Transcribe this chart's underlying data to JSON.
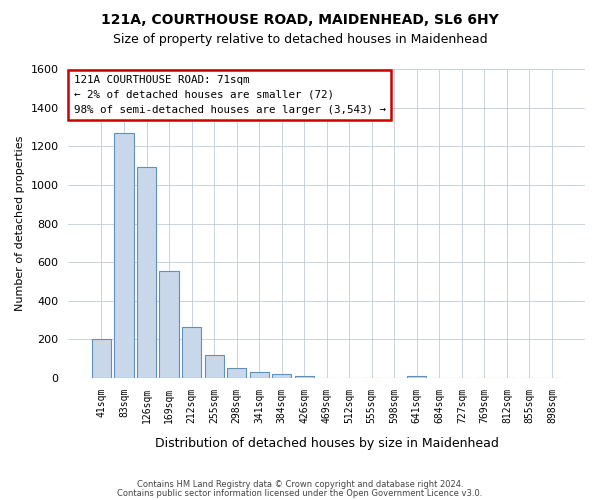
{
  "title": "121A, COURTHOUSE ROAD, MAIDENHEAD, SL6 6HY",
  "subtitle": "Size of property relative to detached houses in Maidenhead",
  "xlabel": "Distribution of detached houses by size in Maidenhead",
  "ylabel": "Number of detached properties",
  "footer_line1": "Contains HM Land Registry data © Crown copyright and database right 2024.",
  "footer_line2": "Contains public sector information licensed under the Open Government Licence v3.0.",
  "annotation_line1": "121A COURTHOUSE ROAD: 71sqm",
  "annotation_line2": "← 2% of detached houses are smaller (72)",
  "annotation_line3": "98% of semi-detached houses are larger (3,543) →",
  "bar_color": "#c8d8ea",
  "bar_edge_color": "#6090b8",
  "annotation_box_facecolor": "#ffffff",
  "annotation_box_edgecolor": "#cc0000",
  "background_color": "#ffffff",
  "grid_color": "#c0ccd8",
  "bins": [
    "41sqm",
    "83sqm",
    "126sqm",
    "169sqm",
    "212sqm",
    "255sqm",
    "298sqm",
    "341sqm",
    "384sqm",
    "426sqm",
    "469sqm",
    "512sqm",
    "555sqm",
    "598sqm",
    "641sqm",
    "684sqm",
    "727sqm",
    "769sqm",
    "812sqm",
    "855sqm",
    "898sqm"
  ],
  "values": [
    200,
    1270,
    1095,
    555,
    265,
    120,
    55,
    30,
    20,
    10,
    0,
    0,
    0,
    0,
    10,
    0,
    0,
    0,
    0,
    0,
    0
  ],
  "ylim": [
    0,
    1600
  ],
  "yticks": [
    0,
    200,
    400,
    600,
    800,
    1000,
    1200,
    1400,
    1600
  ]
}
